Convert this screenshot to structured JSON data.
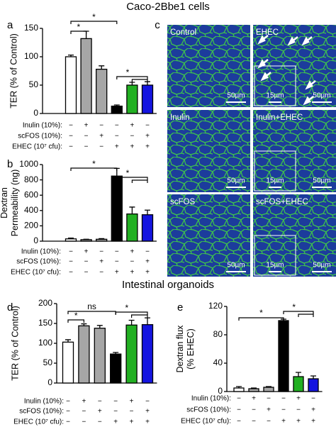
{
  "title": "Caco-2Bbe1 cells",
  "section_title": "Intestinal organoids",
  "panel_c": {
    "panel": "c",
    "images": [
      {
        "label": "Control",
        "scale": "50µm"
      },
      {
        "label": "EHEC",
        "scale": "50µm",
        "inset_scale": "15µm"
      },
      {
        "label": "Inulin",
        "scale": "50µm"
      },
      {
        "label": "Inulin+EHEC",
        "scale": "50µm",
        "inset_scale": "15µm"
      },
      {
        "label": "scFOS",
        "scale": "50µm"
      },
      {
        "label": "scFOS+EHEC",
        "scale": "50µm",
        "inset_scale": "15µm"
      }
    ]
  },
  "chart_data": [
    {
      "type": "bar",
      "panel": "a",
      "ylabel": [
        "TER (% of Control)"
      ],
      "values": [
        100,
        132,
        78,
        13,
        50,
        50
      ],
      "errors": [
        3,
        13,
        6,
        2,
        5,
        6
      ],
      "colors": [
        "#ffffff",
        "#a6a6a6",
        "#a6a6a6",
        "#000000",
        "#22b022",
        "#1515e0"
      ],
      "ylim": [
        0,
        150
      ],
      "yticks": [
        0,
        50,
        100,
        150
      ],
      "treatments": [
        {
          "label": "Inulin (10%):",
          "signs": [
            "−",
            "+",
            "−",
            "−",
            "+",
            "−"
          ]
        },
        {
          "label": "scFOS (10%):",
          "signs": [
            "−",
            "−",
            "+",
            "−",
            "−",
            "+"
          ]
        },
        {
          "label": "EHEC (10⁷ cfu):",
          "signs": [
            "−",
            "−",
            "−",
            "+",
            "+",
            "+"
          ]
        }
      ],
      "annotations": [
        "*",
        "*",
        "*"
      ]
    },
    {
      "type": "bar",
      "panel": "b",
      "ylabel": [
        "Dextran",
        "Permeability (ng)"
      ],
      "values": [
        30,
        20,
        25,
        850,
        355,
        345
      ],
      "errors": [
        10,
        5,
        8,
        100,
        90,
        60
      ],
      "colors": [
        "#ffffff",
        "#a6a6a6",
        "#a6a6a6",
        "#000000",
        "#22b022",
        "#1515e0"
      ],
      "ylim": [
        0,
        1000
      ],
      "yticks": [
        0,
        200,
        400,
        600,
        800,
        1000
      ],
      "treatments": [
        {
          "label": "Inulin (10%):",
          "signs": [
            "−",
            "+",
            "−",
            "−",
            "+",
            "−"
          ]
        },
        {
          "label": "scFOS (10%):",
          "signs": [
            "−",
            "−",
            "+",
            "−",
            "−",
            "+"
          ]
        },
        {
          "label": "EHEC (10⁷ cfu):",
          "signs": [
            "−",
            "−",
            "−",
            "+",
            "+",
            "+"
          ]
        }
      ],
      "annotations": [
        "*",
        "*"
      ]
    },
    {
      "type": "bar",
      "panel": "d",
      "ylabel": [
        "TER (% of  Control)"
      ],
      "values": [
        103,
        144,
        138,
        73,
        146,
        147
      ],
      "errors": [
        6,
        5,
        7,
        4,
        12,
        17
      ],
      "colors": [
        "#ffffff",
        "#a6a6a6",
        "#a6a6a6",
        "#000000",
        "#22b022",
        "#1515e0"
      ],
      "ylim": [
        0,
        200
      ],
      "yticks": [
        0,
        50,
        100,
        150,
        200
      ],
      "treatments": [
        {
          "label": "Inulin (10%):",
          "signs": [
            "−",
            "+",
            "−",
            "−",
            "+",
            "−"
          ]
        },
        {
          "label": "scFOS (10%):",
          "signs": [
            "−",
            "−",
            "+",
            "−",
            "−",
            "+"
          ]
        },
        {
          "label": "EHEC (10⁷ cfu):",
          "signs": [
            "−",
            "−",
            "−",
            "+",
            "+",
            "+"
          ]
        }
      ],
      "annotations": [
        "*",
        "ns",
        "*"
      ]
    },
    {
      "type": "bar",
      "panel": "e",
      "ylabel": [
        "Dextran flux",
        "(% EHEC)"
      ],
      "values": [
        5,
        4,
        6,
        100,
        21,
        18
      ],
      "errors": [
        2,
        1,
        1,
        2,
        6,
        4
      ],
      "colors": [
        "#ffffff",
        "#a6a6a6",
        "#a6a6a6",
        "#000000",
        "#22b022",
        "#1515e0"
      ],
      "ylim": [
        0,
        120
      ],
      "yticks": [
        0,
        40,
        80,
        120
      ],
      "treatments": [
        {
          "label": "Inulin (10%):",
          "signs": [
            "−",
            "+",
            "−",
            "−",
            "+",
            "−"
          ]
        },
        {
          "label": "scFOS (10%):",
          "signs": [
            "−",
            "−",
            "+",
            "−",
            "−",
            "+"
          ]
        },
        {
          "label": "EHEC (10⁷ cfu):",
          "signs": [
            "−",
            "−",
            "−",
            "+",
            "+",
            "+"
          ]
        }
      ],
      "annotations": [
        "*",
        "*"
      ]
    }
  ]
}
